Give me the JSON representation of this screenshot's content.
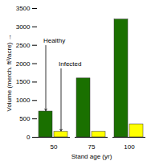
{
  "chart_data": {
    "type": "bar",
    "xlabel": "Stand age (yr)",
    "ylabel": "Volume (merch. ft³/acre)",
    "categories": [
      "50",
      "75",
      "100"
    ],
    "series": [
      {
        "name": "Healthy",
        "color": "#1a7000",
        "values": [
          700,
          1600,
          3200
        ]
      },
      {
        "name": "Infected",
        "color": "#ffff00",
        "values": [
          150,
          150,
          350
        ]
      }
    ],
    "annotations": [
      {
        "text": "Healthy",
        "series": "Healthy",
        "category": "50"
      },
      {
        "text": "Infected",
        "series": "Infected",
        "category": "50"
      }
    ],
    "ylim": [
      0,
      3500
    ],
    "yticks": [
      0,
      500,
      1000,
      1500,
      2000,
      2500,
      3000,
      3500
    ],
    "grid": false
  }
}
